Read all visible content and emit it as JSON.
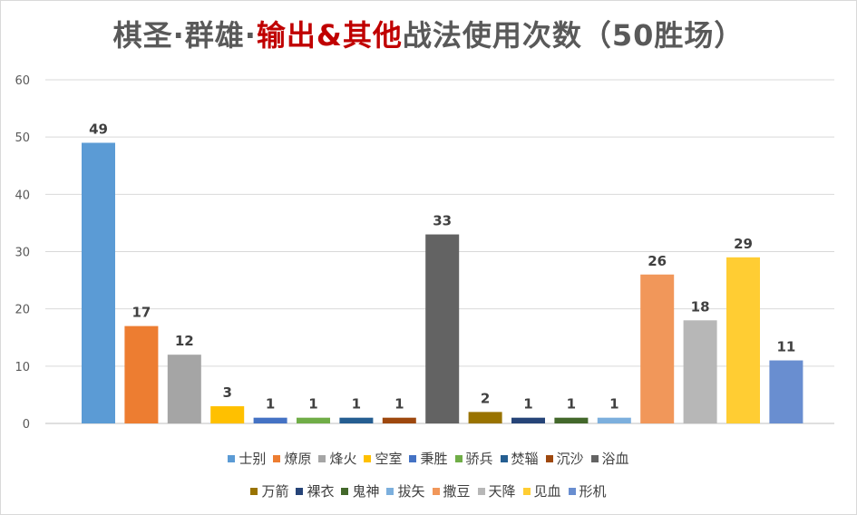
{
  "chart_data": {
    "type": "bar",
    "title": {
      "part1": "棋圣·群雄·",
      "part2": "输出&其他",
      "part3": "战法使用次数（50胜场）"
    },
    "ylim": [
      0,
      60
    ],
    "yticks": [
      0,
      10,
      20,
      30,
      40,
      50,
      60
    ],
    "grid": true,
    "legend_position": "bottom",
    "series": [
      {
        "name": "士别",
        "value": 49,
        "color": "#5b9bd5"
      },
      {
        "name": "燎原",
        "value": 17,
        "color": "#ed7d31"
      },
      {
        "name": "烽火",
        "value": 12,
        "color": "#a5a5a5"
      },
      {
        "name": "空室",
        "value": 3,
        "color": "#ffc000"
      },
      {
        "name": "秉胜",
        "value": 1,
        "color": "#4472c4"
      },
      {
        "name": "骄兵",
        "value": 1,
        "color": "#70ad47"
      },
      {
        "name": "焚辎",
        "value": 1,
        "color": "#255e91"
      },
      {
        "name": "沉沙",
        "value": 1,
        "color": "#9e480e"
      },
      {
        "name": "浴血",
        "value": 33,
        "color": "#636363"
      },
      {
        "name": "万箭",
        "value": 2,
        "color": "#997300"
      },
      {
        "name": "裸衣",
        "value": 1,
        "color": "#264478"
      },
      {
        "name": "鬼神",
        "value": 1,
        "color": "#43682b"
      },
      {
        "name": "拔矢",
        "value": 1,
        "color": "#7cafdd"
      },
      {
        "name": "撒豆",
        "value": 26,
        "color": "#f1975a"
      },
      {
        "name": "天降",
        "value": 18,
        "color": "#b7b7b7"
      },
      {
        "name": "见血",
        "value": 29,
        "color": "#ffcd33"
      },
      {
        "name": "形机",
        "value": 11,
        "color": "#698ed0"
      }
    ]
  }
}
